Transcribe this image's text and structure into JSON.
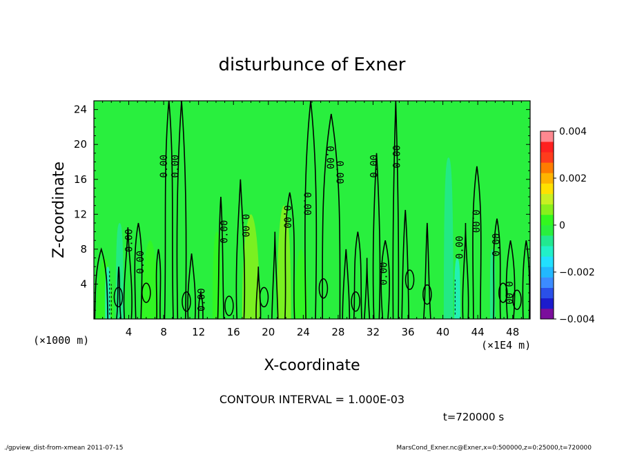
{
  "chart_data": {
    "type": "heatmap",
    "title": "disturbunce of Exner",
    "xlabel": "X-coordinate",
    "ylabel": "Z-coordinate",
    "x_unit_note": "(×1000 m)",
    "x_scale_note": "(×1E4 m)",
    "xlim": [
      0,
      50
    ],
    "ylim": [
      0,
      25
    ],
    "x_ticks": [
      "4",
      "8",
      "12",
      "16",
      "20",
      "24",
      "28",
      "32",
      "36",
      "40",
      "44",
      "48"
    ],
    "y_ticks": [
      "4",
      "8",
      "12",
      "16",
      "20",
      "24"
    ],
    "colorbar": {
      "min": -0.004,
      "max": 0.004,
      "tick_labels": [
        "0.004",
        "0.002",
        "0",
        "−0.002",
        "−0.004"
      ],
      "levels": [
        {
          "color": "#7b0e9c"
        },
        {
          "color": "#1c1ccc"
        },
        {
          "color": "#2a50e8"
        },
        {
          "color": "#3c8cff"
        },
        {
          "color": "#22b8ff"
        },
        {
          "color": "#22e0ff"
        },
        {
          "color": "#22f0c8"
        },
        {
          "color": "#22e890"
        },
        {
          "color": "#29ef3e"
        },
        {
          "color": "#33f71f"
        },
        {
          "color": "#88f01c"
        },
        {
          "color": "#c8f022"
        },
        {
          "color": "#ffe100"
        },
        {
          "color": "#ffb400"
        },
        {
          "color": "#ff7c00"
        },
        {
          "color": "#ff3c1c"
        },
        {
          "color": "#ff2020"
        },
        {
          "color": "#ff8890"
        }
      ]
    },
    "background_color": "#29ef3e",
    "contour_labels": [
      "0.00"
    ],
    "contour_interval_text": "CONTOUR INTERVAL = 1.000E-03",
    "time_text": "t=720000 s"
  },
  "footer": {
    "left": "./gpview_dist-from-xmean  2011-07-15",
    "right": "MarsCond_Exner.nc@Exner,x=0:500000,z=0:25000,t=720000"
  }
}
